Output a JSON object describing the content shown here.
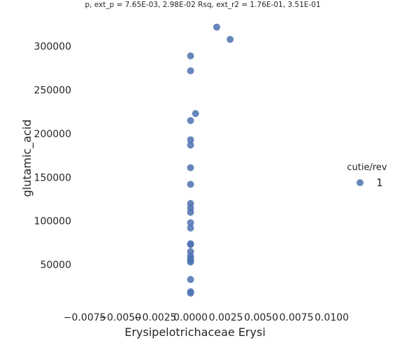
{
  "chart_data": {
    "type": "scatter",
    "title": "p, ext_p = 7.65E-03, 2.98E-02 Rsq, ext_r2 = 1.76E-01, 3.51E-01",
    "xlabel": "Erysipelotrichaceae Erysi",
    "ylabel": "glutamic_acid",
    "xlim": [
      -0.0085,
      0.0125
    ],
    "ylim": [
      2000,
      337000
    ],
    "x_ticks": [
      -0.0075,
      -0.005,
      -0.0025,
      0.0,
      0.0025,
      0.005,
      0.0075,
      0.01
    ],
    "x_tick_labels": [
      "−0.0075",
      "−0.0050",
      "−0.0025",
      "0.0000",
      "0.0025",
      "0.0050",
      "0.0075",
      "0.0100"
    ],
    "y_ticks": [
      50000,
      100000,
      150000,
      200000,
      250000,
      300000
    ],
    "y_tick_labels": [
      "50000",
      "100000",
      "150000",
      "200000",
      "250000",
      "300000"
    ],
    "grid": false,
    "point_color": "#4c72b0",
    "legend": {
      "title": "cutie/rev",
      "placement": "right",
      "entries": [
        {
          "label": "1",
          "color": "#4c72b0"
        }
      ]
    },
    "series": [
      {
        "name": "1",
        "points": [
          [
            0.00185,
            322000
          ],
          [
            0.0028,
            308000
          ],
          [
            0.0,
            289000
          ],
          [
            0.0,
            272000
          ],
          [
            0.00035,
            223000
          ],
          [
            0.0,
            215000
          ],
          [
            0.0,
            193000
          ],
          [
            0.0,
            187000
          ],
          [
            0.0,
            161000
          ],
          [
            0.0,
            142000
          ],
          [
            0.0,
            120000
          ],
          [
            0.0,
            115000
          ],
          [
            0.0,
            110000
          ],
          [
            0.0,
            98000
          ],
          [
            0.0,
            92000
          ],
          [
            0.0,
            74000
          ],
          [
            0.0,
            73000
          ],
          [
            0.0,
            65000
          ],
          [
            0.0,
            60000
          ],
          [
            0.0,
            57000
          ],
          [
            0.0,
            55000
          ],
          [
            0.0,
            53000
          ],
          [
            0.0,
            33000
          ],
          [
            0.0,
            19000
          ],
          [
            0.0,
            17500
          ]
        ]
      }
    ]
  }
}
